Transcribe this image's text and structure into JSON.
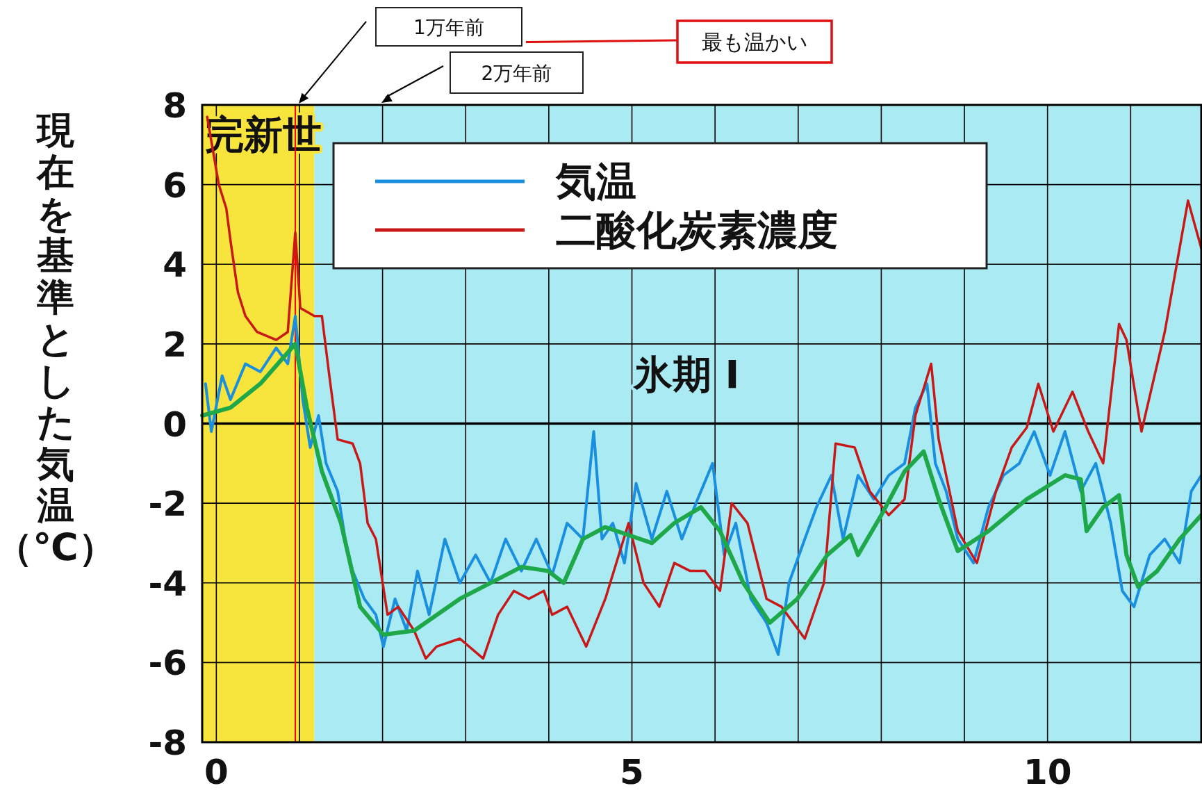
{
  "chart_data": {
    "type": "line",
    "ylabel": "現在を基準とした気温（℃）",
    "xlim": [
      -0.17,
      11.85
    ],
    "ylim": [
      -8,
      8
    ],
    "xticks": [
      0,
      {
        "value": 1,
        "label": null
      },
      {
        "value": 2,
        "label": null
      },
      {
        "value": 3,
        "label": null
      },
      {
        "value": 4,
        "label": null
      },
      5,
      {
        "value": 6,
        "label": null
      },
      {
        "value": 7,
        "label": null
      },
      {
        "value": 8,
        "label": null
      },
      {
        "value": 9,
        "label": null
      },
      10,
      {
        "value": 11,
        "label": null
      }
    ],
    "yticks": [
      -8,
      -6,
      -4,
      -2,
      0,
      2,
      4,
      6,
      8
    ],
    "grid": true,
    "legend": "top",
    "bands": [
      {
        "axis": "x",
        "from": -0.17,
        "to": 1.18,
        "label": "完新世",
        "color": "#f7e43c"
      },
      {
        "axis": "x",
        "from": 1.18,
        "to": 11.85,
        "label": "氷期 I",
        "color": "#aaeaf2"
      }
    ],
    "ref_lines": [
      {
        "axis": "x",
        "value": 0.95,
        "color": "#ff0000"
      }
    ],
    "annotations": [
      "1万年前",
      "2万年前",
      "最も温かい"
    ],
    "series": [
      {
        "name": "気温",
        "color": "#1a8fe0",
        "x": [
          -0.13,
          -0.06,
          0.07,
          0.17,
          0.35,
          0.53,
          0.72,
          0.86,
          0.95,
          1.04,
          1.13,
          1.23,
          1.32,
          1.46,
          1.55,
          1.64,
          1.78,
          1.92,
          2.01,
          2.15,
          2.29,
          2.42,
          2.56,
          2.75,
          2.93,
          3.12,
          3.3,
          3.48,
          3.67,
          3.85,
          4.04,
          4.22,
          4.41,
          4.54,
          4.64,
          4.77,
          4.91,
          5.05,
          5.24,
          5.42,
          5.6,
          5.79,
          5.97,
          6.11,
          6.25,
          6.43,
          6.62,
          6.76,
          6.89,
          7.08,
          7.22,
          7.4,
          7.54,
          7.72,
          7.91,
          8.09,
          8.28,
          8.41,
          8.55,
          8.65,
          8.78,
          8.92,
          9.11,
          9.29,
          9.47,
          9.66,
          9.84,
          10.03,
          10.21,
          10.4,
          10.58,
          10.76,
          10.9,
          11.04,
          11.23,
          11.41,
          11.59,
          11.73,
          11.85
        ],
        "values": [
          1.0,
          -0.2,
          1.2,
          0.6,
          1.5,
          1.3,
          1.9,
          1.5,
          2.7,
          0.6,
          -0.6,
          0.2,
          -1.0,
          -1.7,
          -2.9,
          -3.7,
          -4.4,
          -4.8,
          -5.6,
          -4.4,
          -5.2,
          -3.7,
          -4.8,
          -2.9,
          -4.0,
          -3.3,
          -4.0,
          -2.9,
          -3.7,
          -2.9,
          -3.8,
          -2.5,
          -2.9,
          -0.2,
          -2.9,
          -2.5,
          -3.5,
          -1.5,
          -2.9,
          -1.7,
          -2.9,
          -1.9,
          -1.0,
          -3.3,
          -2.5,
          -4.4,
          -5.0,
          -5.8,
          -4.0,
          -2.9,
          -2.1,
          -1.3,
          -2.9,
          -1.3,
          -1.9,
          -1.3,
          -1.0,
          0.4,
          1.0,
          -1.0,
          -1.7,
          -2.9,
          -3.5,
          -2.1,
          -1.3,
          -1.0,
          -0.2,
          -1.3,
          -0.2,
          -1.7,
          -1.0,
          -2.5,
          -4.2,
          -4.6,
          -3.3,
          -2.9,
          -3.5,
          -1.7,
          -1.3
        ]
      },
      {
        "name": "二酸化炭素濃度",
        "color": "#c81818",
        "x": [
          -0.11,
          0.03,
          0.12,
          0.17,
          0.26,
          0.35,
          0.49,
          0.72,
          0.86,
          0.95,
          1.01,
          1.18,
          1.27,
          1.36,
          1.46,
          1.64,
          1.73,
          1.82,
          1.92,
          2.06,
          2.19,
          2.38,
          2.52,
          2.65,
          2.93,
          3.21,
          3.39,
          3.58,
          3.76,
          3.94,
          4.04,
          4.22,
          4.45,
          4.68,
          4.96,
          5.14,
          5.33,
          5.51,
          5.7,
          5.88,
          6.06,
          6.2,
          6.39,
          6.62,
          6.8,
          7.08,
          7.31,
          7.45,
          7.68,
          7.86,
          8.09,
          8.28,
          8.41,
          8.6,
          8.69,
          8.92,
          9.15,
          9.38,
          9.57,
          9.75,
          9.89,
          10.07,
          10.3,
          10.49,
          10.67,
          10.86,
          10.95,
          11.13,
          11.41,
          11.69,
          11.85
        ],
        "values": [
          7.7,
          6.0,
          5.4,
          4.6,
          3.3,
          2.7,
          2.3,
          2.1,
          2.3,
          4.8,
          2.9,
          2.7,
          2.7,
          1.2,
          -0.4,
          -0.5,
          -1.0,
          -2.5,
          -2.9,
          -4.8,
          -4.6,
          -5.2,
          -5.9,
          -5.6,
          -5.4,
          -5.9,
          -4.8,
          -4.2,
          -4.4,
          -4.2,
          -4.8,
          -4.6,
          -5.6,
          -4.4,
          -2.5,
          -4.0,
          -4.6,
          -3.5,
          -3.7,
          -3.7,
          -4.2,
          -2.0,
          -2.5,
          -4.4,
          -4.6,
          -5.4,
          -4.0,
          -0.5,
          -0.6,
          -1.7,
          -2.3,
          -1.9,
          0.2,
          1.5,
          -0.4,
          -2.7,
          -3.5,
          -1.7,
          -0.6,
          -0.1,
          1.0,
          -0.2,
          0.8,
          -0.2,
          -1.0,
          2.5,
          2.1,
          -0.2,
          2.3,
          5.6,
          4.4
        ]
      },
      {
        "color": "#1fa84a",
        "x": [
          -0.17,
          0.17,
          0.53,
          0.95,
          1.09,
          1.27,
          1.5,
          1.73,
          2.01,
          2.38,
          2.93,
          3.67,
          3.99,
          4.18,
          4.41,
          4.68,
          4.96,
          5.24,
          5.51,
          5.83,
          6.06,
          6.34,
          6.66,
          6.99,
          7.35,
          7.63,
          7.72,
          8.0,
          8.28,
          8.51,
          8.69,
          8.92,
          9.29,
          9.75,
          10.21,
          10.4,
          10.47,
          10.67,
          10.86,
          10.95,
          11.09,
          11.32,
          11.59,
          11.85
        ],
        "values": [
          0.2,
          0.4,
          1.0,
          2.0,
          0.4,
          -1.2,
          -2.5,
          -4.6,
          -5.3,
          -5.2,
          -4.4,
          -3.6,
          -3.7,
          -4.0,
          -2.9,
          -2.6,
          -2.8,
          -3.0,
          -2.5,
          -2.1,
          -2.7,
          -4.0,
          -5.0,
          -4.4,
          -3.3,
          -2.8,
          -3.3,
          -2.3,
          -1.2,
          -0.7,
          -1.9,
          -3.2,
          -2.7,
          -1.9,
          -1.3,
          -1.4,
          -2.7,
          -2.1,
          -1.8,
          -3.3,
          -4.1,
          -3.7,
          -2.9,
          -2.3
        ]
      }
    ]
  }
}
